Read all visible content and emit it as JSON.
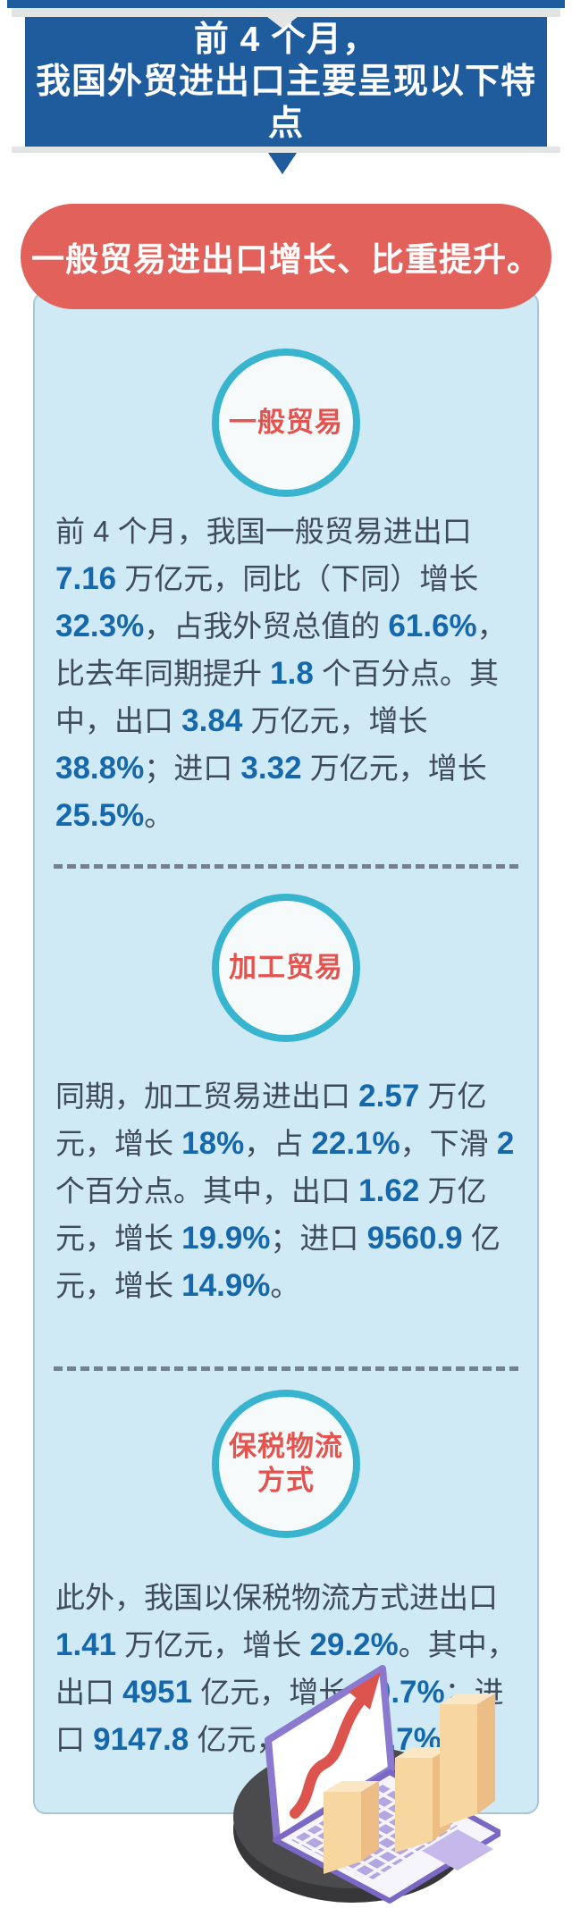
{
  "page": {
    "header": {
      "line1": "前 4 个月，",
      "line2": "我国外贸进出口主要呈现以下特点"
    },
    "pill_label": "一般贸易进出口增长、比重提升。",
    "sections": [
      {
        "badge_lines": [
          "一般贸易"
        ],
        "segments": [
          {
            "t": "前 4 个月，我国一般贸易进出口 ",
            "b": false
          },
          {
            "t": "7.16",
            "b": true
          },
          {
            "t": " 万亿元，同比（下同）增长 ",
            "b": false
          },
          {
            "t": "32.3%",
            "b": true
          },
          {
            "t": "，占我外贸总值的 ",
            "b": false
          },
          {
            "t": "61.6%",
            "b": true
          },
          {
            "t": "，比去年同期提升 ",
            "b": false
          },
          {
            "t": "1.8",
            "b": true
          },
          {
            "t": " 个百分点。其中，出口 ",
            "b": false
          },
          {
            "t": "3.84",
            "b": true
          },
          {
            "t": " 万亿元，增长 ",
            "b": false
          },
          {
            "t": "38.8%",
            "b": true
          },
          {
            "t": "；进口 ",
            "b": false
          },
          {
            "t": "3.32",
            "b": true
          },
          {
            "t": " 万亿元，增长 ",
            "b": false
          },
          {
            "t": "25.5%",
            "b": true
          },
          {
            "t": "。",
            "b": false
          }
        ]
      },
      {
        "badge_lines": [
          "加工贸易"
        ],
        "segments": [
          {
            "t": "同期，加工贸易进出口 ",
            "b": false
          },
          {
            "t": "2.57",
            "b": true
          },
          {
            "t": " 万亿元，增长 ",
            "b": false
          },
          {
            "t": "18%",
            "b": true
          },
          {
            "t": "，占 ",
            "b": false
          },
          {
            "t": "22.1%",
            "b": true
          },
          {
            "t": "，下滑 ",
            "b": false
          },
          {
            "t": "2",
            "b": true
          },
          {
            "t": " 个百分点。其中，出口 ",
            "b": false
          },
          {
            "t": "1.62",
            "b": true
          },
          {
            "t": " 万亿元，增长 ",
            "b": false
          },
          {
            "t": "19.9%",
            "b": true
          },
          {
            "t": "；进口 ",
            "b": false
          },
          {
            "t": "9560.9",
            "b": true
          },
          {
            "t": " 亿元，增长 ",
            "b": false
          },
          {
            "t": "14.9%",
            "b": true
          },
          {
            "t": "。",
            "b": false
          }
        ]
      },
      {
        "badge_lines": [
          "保税物流",
          "方式"
        ],
        "segments": [
          {
            "t": "此外，我国以保税物流方式进出口 ",
            "b": false
          },
          {
            "t": "1.41",
            "b": true
          },
          {
            "t": " 万亿元，增长 ",
            "b": false
          },
          {
            "t": "29.2%",
            "b": true
          },
          {
            "t": "。其中，出口 ",
            "b": false
          },
          {
            "t": "4951",
            "b": true
          },
          {
            "t": " 亿元，增长 ",
            "b": false
          },
          {
            "t": "40.7%",
            "b": true
          },
          {
            "t": "；进口 ",
            "b": false
          },
          {
            "t": "9147.8",
            "b": true
          },
          {
            "t": " 亿元，增长 ",
            "b": false
          },
          {
            "t": "23.7%",
            "b": true
          },
          {
            "t": "。",
            "b": false
          }
        ]
      }
    ],
    "footer_illustration": {
      "name": "laptop-with-rising-chart",
      "icons": [
        "laptop-icon",
        "rising-arrow-icon",
        "bar-chart-icon",
        "platform-disc"
      ]
    },
    "colors": {
      "banner_blue": "#1e5c9e",
      "pill_red": "#e2615b",
      "card_bg": "#cfe9f5",
      "card_border": "#a9c6d6",
      "circle_teal": "#38b4cf",
      "badge_red": "#e4534e",
      "text_dark": "#3f4b59",
      "number_blue": "#1668ac"
    }
  }
}
